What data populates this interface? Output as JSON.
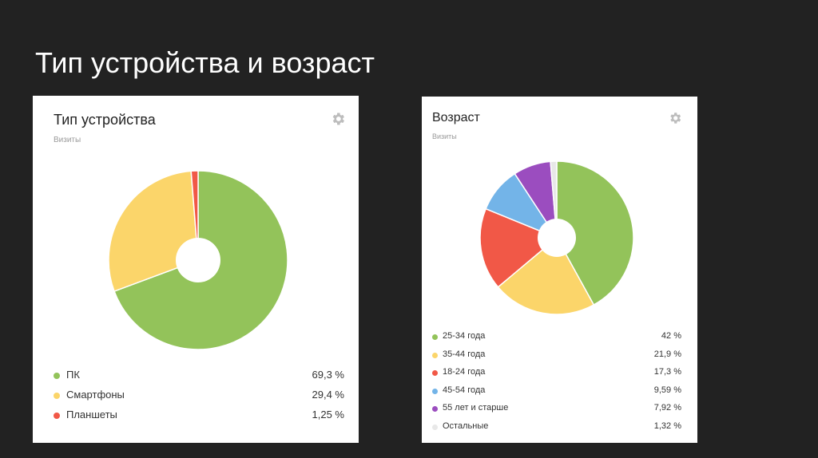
{
  "slide": {
    "title": "Тип устройства и возраст"
  },
  "device_card": {
    "title": "Тип устройства",
    "subtitle": "Визиты",
    "settings_icon": "gear-icon",
    "legend": [
      {
        "label": "ПК",
        "value": "69,3 %",
        "color": "#93c35a"
      },
      {
        "label": "Смартфоны",
        "value": "29,4 %",
        "color": "#fbd56a"
      },
      {
        "label": "Планшеты",
        "value": "1,25 %",
        "color": "#f15847"
      }
    ]
  },
  "age_card": {
    "title": "Возраст",
    "subtitle": "Визиты",
    "settings_icon": "gear-icon",
    "legend": [
      {
        "label": "25-34 года",
        "value": "42 %",
        "color": "#93c35a"
      },
      {
        "label": "35-44 года",
        "value": "21,9 %",
        "color": "#fbd56a"
      },
      {
        "label": "18-24 года",
        "value": "17,3 %",
        "color": "#f15847"
      },
      {
        "label": "45-54 года",
        "value": "9,59 %",
        "color": "#73b4e8"
      },
      {
        "label": "55 лет и старше",
        "value": "7,92 %",
        "color": "#9b4dbf"
      },
      {
        "label": "Остальные",
        "value": "1,32 %",
        "color": "#e8e8e8"
      }
    ]
  },
  "chart_data": [
    {
      "type": "pie",
      "title": "Тип устройства",
      "subtitle": "Визиты",
      "categories": [
        "ПК",
        "Смартфоны",
        "Планшеты"
      ],
      "values": [
        69.3,
        29.4,
        1.25
      ],
      "colors": [
        "#93c35a",
        "#fbd56a",
        "#f15847"
      ],
      "donut": true
    },
    {
      "type": "pie",
      "title": "Возраст",
      "subtitle": "Визиты",
      "categories": [
        "25-34 года",
        "35-44 года",
        "18-24 года",
        "45-54 года",
        "55 лет и старше",
        "Остальные"
      ],
      "values": [
        42,
        21.9,
        17.3,
        9.59,
        7.92,
        1.32
      ],
      "colors": [
        "#93c35a",
        "#fbd56a",
        "#f15847",
        "#73b4e8",
        "#9b4dbf",
        "#e8e8e8"
      ],
      "donut": true
    }
  ]
}
